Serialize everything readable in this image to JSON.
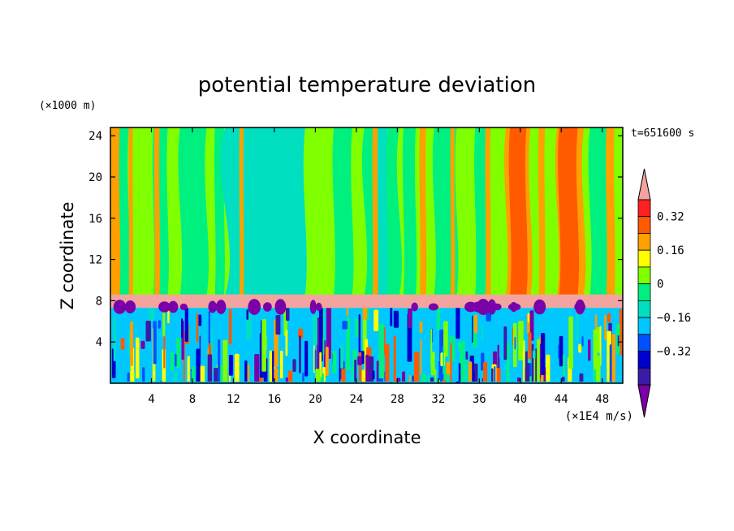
{
  "chart_data": {
    "type": "heatmap",
    "title": "potential temperature deviation",
    "xlabel": "X coordinate",
    "ylabel": "Z coordinate",
    "x_unit": "(×1E4 m/s)",
    "y_unit": "(×1000 m)",
    "time_label": "t=651600 s",
    "xlim": [
      0,
      50
    ],
    "ylim": [
      0,
      24.8
    ],
    "x_ticks": [
      4,
      8,
      12,
      16,
      20,
      24,
      28,
      32,
      36,
      40,
      44,
      48
    ],
    "y_ticks": [
      4,
      8,
      12,
      16,
      20,
      24
    ],
    "colorbar": {
      "levels": [
        -0.48,
        -0.4,
        -0.32,
        -0.24,
        -0.16,
        -0.08,
        0,
        0.08,
        0.16,
        0.24,
        0.32,
        0.4
      ],
      "colors": [
        "#7a00a8",
        "#3c1aa8",
        "#0000cc",
        "#0050ff",
        "#00c8ff",
        "#00e0c0",
        "#00f080",
        "#80ff00",
        "#ffff00",
        "#ffa000",
        "#ff5a00",
        "#ff2020",
        "#f4a4a0"
      ],
      "tick_labels": [
        "0.32",
        "0.16",
        "0",
        "−0.16",
        "−0.32"
      ],
      "tick_values": [
        0.32,
        0.16,
        0,
        -0.16,
        -0.32
      ]
    },
    "background_color": "#80ff00",
    "regions": [
      {
        "level": -0.08,
        "xs": [
          0.2,
          4.2,
          6.8,
          10.2,
          15.6,
          21.8,
          24.8,
          28.6,
          31.6,
          35.6,
          46.8
        ],
        "widths": [
          1.6,
          1.4,
          2.6,
          0.9,
          3.2,
          1.8,
          3.4,
          1.2,
          2.2,
          1.3,
          2.2
        ]
      },
      {
        "level": -0.16,
        "xs": [
          11.2,
          16.8,
          26.0
        ],
        "widths": [
          6.2,
          2.2,
          1.0
        ]
      },
      {
        "level": 0.16,
        "xs": [
          0.0,
          1.8,
          4.3,
          12.6,
          25.6,
          30.2,
          33.2,
          36.6,
          38.6,
          41.8,
          43.6,
          48.4
        ],
        "widths": [
          0.9,
          0.4,
          0.5,
          0.4,
          0.5,
          0.6,
          0.4,
          0.5,
          2.4,
          0.6,
          2.6,
          0.8
        ]
      },
      {
        "level": 0.24,
        "xs": [
          39.0,
          43.8
        ],
        "widths": [
          1.6,
          1.8
        ]
      }
    ],
    "stable_layer": {
      "z_min": 7.3,
      "z_max": 8.6,
      "level": 0.4
    },
    "turbulent_layer": {
      "z_min": 0,
      "z_max": 7.3
    }
  }
}
